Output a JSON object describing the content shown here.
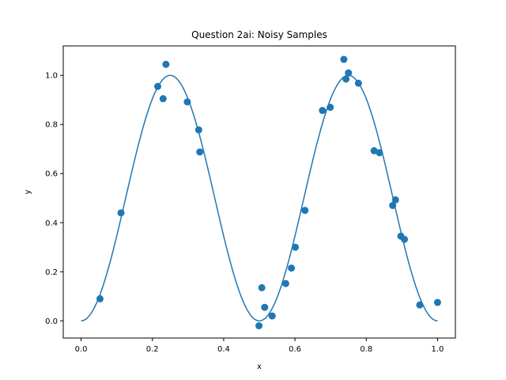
{
  "chart_data": {
    "type": "scatter",
    "title": "Question 2ai: Noisy Samples",
    "xlabel": "x",
    "ylabel": "y",
    "xlim": [
      -0.05,
      1.05
    ],
    "ylim": [
      -0.07,
      1.12
    ],
    "xticks": [
      0.0,
      0.2,
      0.4,
      0.6,
      0.8,
      1.0
    ],
    "xtick_labels": [
      "0.0",
      "0.2",
      "0.4",
      "0.6",
      "0.8",
      "1.0"
    ],
    "yticks": [
      0.0,
      0.2,
      0.4,
      0.6,
      0.8,
      1.0
    ],
    "ytick_labels": [
      "0.0",
      "0.2",
      "0.4",
      "0.6",
      "0.8",
      "1.0"
    ],
    "grid": false,
    "series": [
      {
        "kind": "line",
        "function": "sin^2(2*pi*x)",
        "color": "#1f77b4",
        "x_range": [
          0.0,
          1.0
        ]
      },
      {
        "kind": "scatter",
        "color": "#1f77b4",
        "points": [
          {
            "x": 0.053,
            "y": 0.09
          },
          {
            "x": 0.112,
            "y": 0.44
          },
          {
            "x": 0.215,
            "y": 0.955
          },
          {
            "x": 0.23,
            "y": 0.905
          },
          {
            "x": 0.238,
            "y": 1.045
          },
          {
            "x": 0.298,
            "y": 0.892
          },
          {
            "x": 0.33,
            "y": 0.778
          },
          {
            "x": 0.333,
            "y": 0.688
          },
          {
            "x": 0.499,
            "y": -0.02
          },
          {
            "x": 0.507,
            "y": 0.135
          },
          {
            "x": 0.515,
            "y": 0.055
          },
          {
            "x": 0.536,
            "y": 0.02
          },
          {
            "x": 0.574,
            "y": 0.152
          },
          {
            "x": 0.59,
            "y": 0.215
          },
          {
            "x": 0.601,
            "y": 0.3
          },
          {
            "x": 0.628,
            "y": 0.45
          },
          {
            "x": 0.677,
            "y": 0.857
          },
          {
            "x": 0.699,
            "y": 0.87
          },
          {
            "x": 0.737,
            "y": 1.065
          },
          {
            "x": 0.743,
            "y": 0.985
          },
          {
            "x": 0.75,
            "y": 1.01
          },
          {
            "x": 0.778,
            "y": 0.968
          },
          {
            "x": 0.822,
            "y": 0.693
          },
          {
            "x": 0.837,
            "y": 0.685
          },
          {
            "x": 0.874,
            "y": 0.47
          },
          {
            "x": 0.882,
            "y": 0.493
          },
          {
            "x": 0.897,
            "y": 0.345
          },
          {
            "x": 0.907,
            "y": 0.332
          },
          {
            "x": 0.95,
            "y": 0.065
          },
          {
            "x": 1.0,
            "y": 0.075
          }
        ]
      }
    ]
  }
}
